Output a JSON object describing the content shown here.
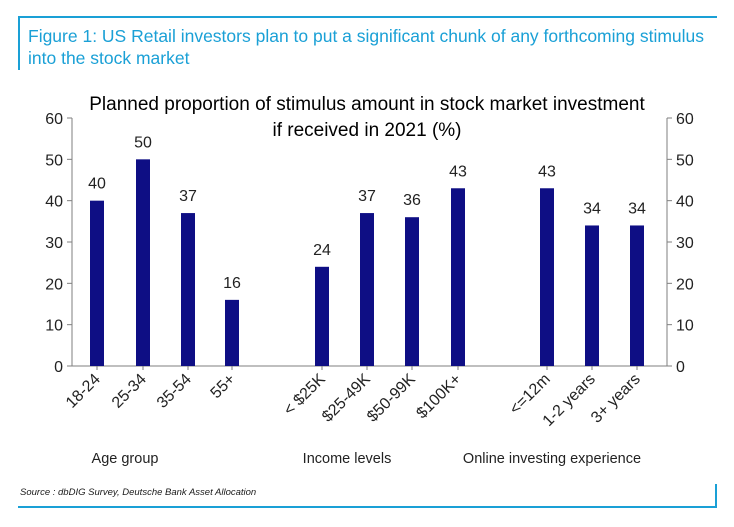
{
  "figure": {
    "caption": "Figure 1: US Retail investors plan to put a significant chunk of any forthcoming stimulus into the stock market",
    "source": "Source : dbDIG Survey, Deutsche Bank Asset Allocation"
  },
  "chart_data": {
    "type": "bar",
    "title_line1": "Planned proportion of stimulus amount in stock market investment",
    "title_line2": "if received in 2021 (%)",
    "categories": [
      "18-24",
      "25-34",
      "35-54",
      "55+",
      "< $25K",
      "$25-49K",
      "$50-99K",
      "$100K+",
      "<=12m",
      "1-2 years",
      "3+ years"
    ],
    "values": [
      40,
      50,
      37,
      16,
      24,
      37,
      36,
      43,
      43,
      34,
      34
    ],
    "groups": [
      {
        "label": "Age group",
        "members": [
          "18-24",
          "25-34",
          "35-54",
          "55+"
        ]
      },
      {
        "label": "Income levels",
        "members": [
          "< $25K",
          "$25-49K",
          "$50-99K",
          "$100K+"
        ]
      },
      {
        "label": "Online investing experience",
        "members": [
          "<=12m",
          "1-2 years",
          "3+ years"
        ]
      }
    ],
    "ylim": [
      0,
      60
    ],
    "yticks": [
      0,
      10,
      20,
      30,
      40,
      50,
      60
    ],
    "y_axis_both_sides": true,
    "data_labels": true,
    "grid": false,
    "bar_color": "#0e0e84"
  }
}
